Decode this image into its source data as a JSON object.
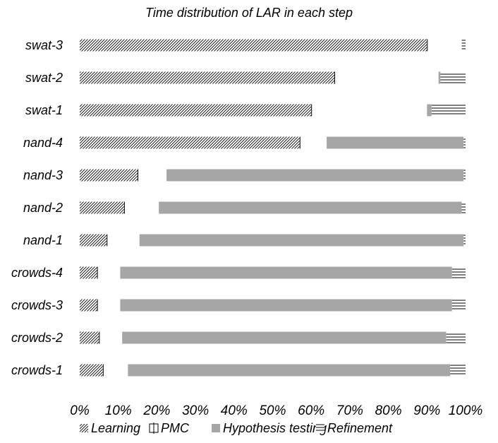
{
  "chart_data": {
    "type": "bar",
    "orientation": "horizontal",
    "stacked": true,
    "percent": true,
    "title": "Time distribution of LAR in each step",
    "categories": [
      "swat-3",
      "swat-2",
      "swat-1",
      "nand-4",
      "nand-3",
      "nand-2",
      "nand-1",
      "crowds-4",
      "crowds-3",
      "crowds-2",
      "crowds-1"
    ],
    "series": [
      {
        "name": "Learning",
        "values": [
          90,
          66,
          60,
          57,
          15,
          11.5,
          7,
          4.5,
          4.5,
          5,
          6
        ],
        "pattern": "diagonal-hatch"
      },
      {
        "name": "PMC",
        "values": [
          9,
          27,
          30,
          7,
          7.5,
          9,
          8.5,
          6,
          6,
          6,
          6.5
        ],
        "pattern": "white-box-ticks"
      },
      {
        "name": "Hypothesis testing",
        "values": [
          0,
          0.5,
          1.2,
          35.5,
          77,
          78.5,
          84,
          86,
          86,
          84,
          83.5
        ],
        "color": "#a6a6a6"
      },
      {
        "name": "Refinement",
        "values": [
          1,
          6.5,
          8.8,
          0.5,
          0.5,
          1,
          0.5,
          3.5,
          3.5,
          5,
          4
        ],
        "pattern": "horizontal-lines"
      }
    ],
    "xlim": [
      0,
      100
    ],
    "xticks": [
      "0%",
      "10%",
      "20%",
      "30%",
      "40%",
      "50%",
      "60%",
      "70%",
      "80%",
      "90%",
      "100%"
    ],
    "grid": false,
    "legend_position": "bottom"
  }
}
